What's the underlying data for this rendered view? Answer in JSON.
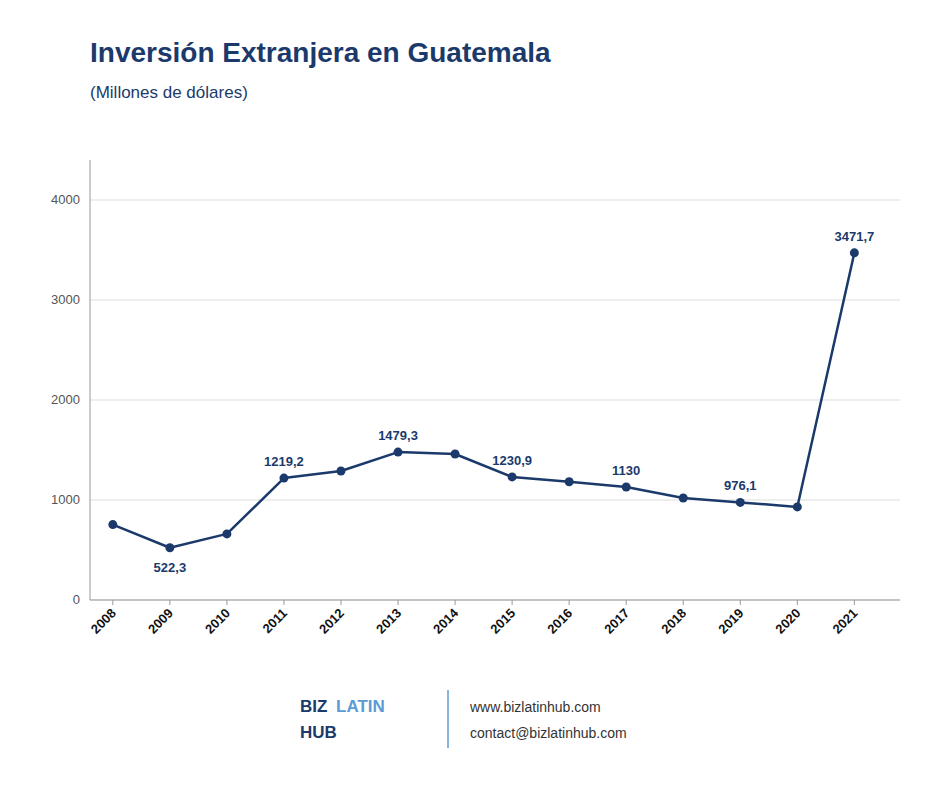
{
  "chart_data": {
    "type": "line",
    "title": "Inversión Extranjera en Guatemala",
    "subtitle": "(Millones de dólares)",
    "x": [
      2008,
      2009,
      2010,
      2011,
      2012,
      2013,
      2014,
      2015,
      2016,
      2017,
      2018,
      2019,
      2020,
      2021
    ],
    "xlim": [
      2007.6,
      2021.8
    ],
    "xticks": [
      2008,
      2009,
      2010,
      2011,
      2012,
      2013,
      2014,
      2015,
      2016,
      2017,
      2018,
      2019,
      2020,
      2021
    ],
    "ylim": [
      0,
      4400
    ],
    "yticks": [
      0,
      1000,
      2000,
      3000,
      4000
    ],
    "grid": true,
    "data_labels": true,
    "series": [
      {
        "color": "#1b3a6b",
        "marker": "circle",
        "line_style": "solid",
        "values": [
          754.0,
          522.3,
          661.0,
          1219.2,
          1290.0,
          1479.3,
          1460.0,
          1230.9,
          1182.0,
          1130.0,
          1020.0,
          976.1,
          931.0,
          3471.7
        ],
        "value_labels": [
          null,
          "522,3",
          null,
          "1219,2",
          null,
          "1479,3",
          null,
          "1230,9",
          null,
          "1130",
          null,
          "976,1",
          null,
          "3471,7"
        ]
      }
    ],
    "annotations": [
      {
        "text": "BIZ",
        "color": "#1b3a6b"
      },
      {
        "text": "LATIN",
        "color": "#5b9bd5"
      },
      {
        "text": "HUB",
        "color": "#1b3a6b"
      },
      {
        "text": "www.bizlatinhub.com",
        "color": "#333333"
      },
      {
        "text": "contact@bizlatinhub.com",
        "color": "#333333"
      }
    ]
  }
}
